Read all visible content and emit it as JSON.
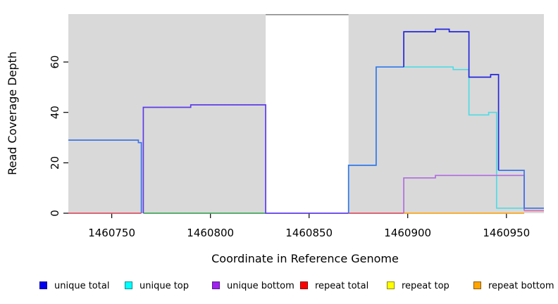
{
  "chart_data": {
    "type": "line",
    "subtype": "step-coverage-plot",
    "xlabel": "Coordinate in Reference Genome",
    "ylabel": "Read Coverage Depth",
    "xlim": [
      1460728,
      1460969
    ],
    "ylim": [
      0,
      79
    ],
    "x_ticks": [
      1460750,
      1460800,
      1460850,
      1460900,
      1460950
    ],
    "y_ticks": [
      0,
      20,
      40,
      60
    ],
    "grid": "off",
    "legend_position": "bottom",
    "shaded_regions": [
      {
        "x0": 1460728,
        "x1": 1460828,
        "color": "#D9D9D9"
      },
      {
        "x0": 1460870,
        "x1": 1460969,
        "color": "#D9D9D9"
      }
    ],
    "gap_top_line": {
      "x0": 1460828,
      "x1": 1460870,
      "color": "#8C8C8C"
    },
    "series": [
      {
        "name": "unique-total-left-block",
        "color": "#3D72E8",
        "points": [
          [
            1460728,
            29
          ],
          [
            1460763.5,
            29
          ],
          [
            1460763.5,
            28
          ],
          [
            1460765,
            28
          ],
          [
            1460765,
            0
          ]
        ]
      },
      {
        "name": "repeat-total-zero-left",
        "color": "#DC5066",
        "points": [
          [
            1460728,
            0
          ],
          [
            1460765,
            0
          ]
        ]
      },
      {
        "name": "zero-line-green",
        "color": "#44A85C",
        "points": [
          [
            1460766,
            0
          ],
          [
            1460828,
            0
          ]
        ]
      },
      {
        "name": "unique-total-mid-block",
        "color": "#5C3BE8",
        "points": [
          [
            1460766,
            0
          ],
          [
            1460766,
            42
          ],
          [
            1460790,
            42
          ],
          [
            1460790,
            43
          ],
          [
            1460828,
            43
          ],
          [
            1460828,
            0
          ],
          [
            1460870,
            0
          ]
        ]
      },
      {
        "name": "repeat-total-zero-mid",
        "color": "#DC5066",
        "points": [
          [
            1460870,
            0
          ],
          [
            1460898,
            0
          ]
        ]
      },
      {
        "name": "repeat-bottom-zero-right",
        "color": "#FFA519",
        "points": [
          [
            1460898,
            0
          ],
          [
            1460959,
            0
          ]
        ]
      },
      {
        "name": "unique-top",
        "color": "#4FDCE4",
        "points": [
          [
            1460898,
            58
          ],
          [
            1460923,
            58
          ],
          [
            1460923,
            57
          ],
          [
            1460931,
            57
          ],
          [
            1460931,
            39
          ],
          [
            1460941,
            39
          ],
          [
            1460941,
            40
          ],
          [
            1460945,
            40
          ],
          [
            1460945,
            2
          ],
          [
            1460969,
            2
          ]
        ]
      },
      {
        "name": "unique-bottom",
        "color": "#B06CE0",
        "points": [
          [
            1460898,
            0
          ],
          [
            1460898,
            14
          ],
          [
            1460914,
            14
          ],
          [
            1460914,
            15
          ],
          [
            1460959,
            15
          ],
          [
            1460959,
            1
          ]
        ]
      },
      {
        "name": "unique-bottom-tail",
        "color": "#DE6FA1",
        "points": [
          [
            1460959,
            1
          ],
          [
            1460969,
            1
          ]
        ]
      },
      {
        "name": "unique-total-right-rise",
        "color": "#2E78EC",
        "points": [
          [
            1460870,
            0
          ],
          [
            1460870,
            19
          ],
          [
            1460884,
            19
          ],
          [
            1460884,
            58
          ],
          [
            1460898,
            58
          ]
        ]
      },
      {
        "name": "unique-total-peak",
        "color": "#2525DC",
        "points": [
          [
            1460898,
            58
          ],
          [
            1460898,
            72
          ],
          [
            1460914,
            72
          ],
          [
            1460914,
            73
          ],
          [
            1460921,
            73
          ],
          [
            1460921,
            72
          ],
          [
            1460931,
            72
          ],
          [
            1460931,
            54
          ],
          [
            1460942,
            54
          ],
          [
            1460942,
            55
          ],
          [
            1460946,
            55
          ],
          [
            1460946,
            17
          ]
        ]
      },
      {
        "name": "unique-total-tail",
        "color": "#3D72E8",
        "points": [
          [
            1460946,
            17
          ],
          [
            1460959,
            17
          ],
          [
            1460959,
            2
          ],
          [
            1460969,
            2
          ]
        ]
      }
    ],
    "legend": [
      {
        "label": "unique total",
        "fill": "#0000EE",
        "border": "#00008B"
      },
      {
        "label": "unique top",
        "fill": "#00FFFF",
        "border": "#008B8B"
      },
      {
        "label": "unique bottom",
        "fill": "#A020F0",
        "border": "#551A8B"
      },
      {
        "label": "repeat total",
        "fill": "#FF0000",
        "border": "#8B0000"
      },
      {
        "label": "repeat top",
        "fill": "#FFFF00",
        "border": "#8B8B00"
      },
      {
        "label": "repeat bottom",
        "fill": "#FFA500",
        "border": "#8B5A00"
      }
    ]
  }
}
